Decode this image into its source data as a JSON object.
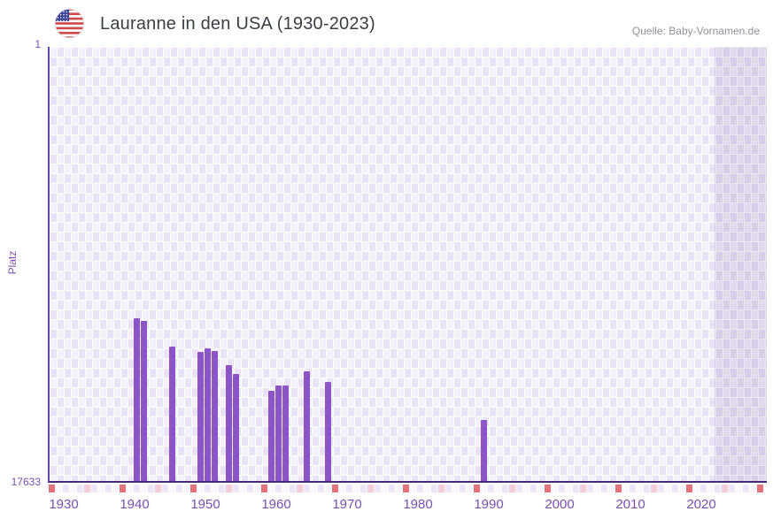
{
  "chart_data": {
    "type": "bar",
    "title": "Lauranne in den USA (1930-2023)",
    "source": "Quelle: Baby-Vornamen.de",
    "xlabel": "",
    "ylabel": "Platz",
    "legend": "none",
    "grid": "checkerboard",
    "y_axis": {
      "min": 1,
      "max": 17633,
      "inverted": true,
      "top_tick_label": "1",
      "bottom_tick_label": "17633"
    },
    "x_axis": {
      "grid_start_year": 1930,
      "grid_end_year": 2030,
      "data_start_year": 1930,
      "data_end_year": 2023,
      "tick_labels": [
        "1930",
        "1940",
        "1950",
        "1960",
        "1970",
        "1980",
        "1990",
        "2000",
        "2010",
        "2020"
      ]
    },
    "series": [
      {
        "name": "Lauranne",
        "unit": "Platz",
        "points": [
          {
            "year": 1942,
            "platz": 11020
          },
          {
            "year": 1943,
            "platz": 11140
          },
          {
            "year": 1947,
            "platz": 12180
          },
          {
            "year": 1951,
            "platz": 12380
          },
          {
            "year": 1952,
            "platz": 12260
          },
          {
            "year": 1953,
            "platz": 12340
          },
          {
            "year": 1955,
            "platz": 12920
          },
          {
            "year": 1956,
            "platz": 13280
          },
          {
            "year": 1961,
            "platz": 13970
          },
          {
            "year": 1962,
            "platz": 13760
          },
          {
            "year": 1963,
            "platz": 13760
          },
          {
            "year": 1966,
            "platz": 13180
          },
          {
            "year": 1969,
            "platz": 13600
          },
          {
            "year": 1991,
            "platz": 15140
          }
        ]
      }
    ],
    "colors": {
      "bar": "#8b55c7",
      "axis_line_bottom": "#45297b",
      "axis_line_left": "#6a43ae",
      "tick_label": "#7a4fb5",
      "title_text": "#3a3f46",
      "source_text": "#8d939c",
      "checker_light": "#f5f1fb",
      "checker_dark": "#eae3f5",
      "future_band_overlay": "rgba(80,60,130,0.12)",
      "strip_decade": "#e2737c",
      "strip_half_decade": "#f3ced9",
      "strip_even": "#ece6f6",
      "strip_odd": "#f8f5fc"
    }
  },
  "icons": {
    "flag": "us-flag-icon"
  }
}
